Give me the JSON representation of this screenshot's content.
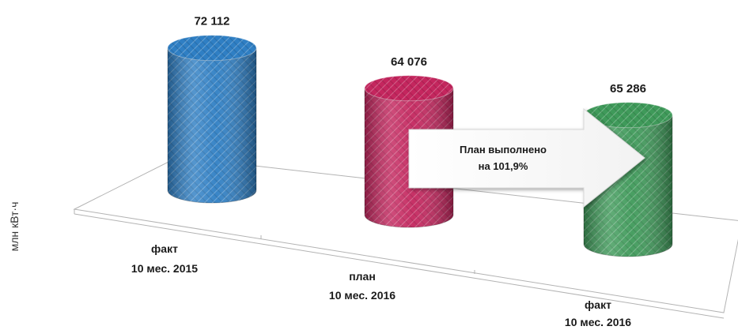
{
  "chart_data": {
    "type": "bar",
    "ylabel": "млн кВт·ч",
    "categories": [
      {
        "line1": "факт",
        "line2": "10 мес.  2015"
      },
      {
        "line1": "план",
        "line2": "10 мес.  2016"
      },
      {
        "line1": "факт",
        "line2": "10 мес.  2016"
      }
    ],
    "values": [
      72112,
      64076,
      65286
    ],
    "value_labels": [
      "72 112",
      "64 076",
      "65 286"
    ],
    "colors": [
      "#2f7fc4",
      "#c4265e",
      "#3f9a5a"
    ],
    "annotation": {
      "line1": "План выполнено",
      "line2": "на 101,9%"
    }
  }
}
